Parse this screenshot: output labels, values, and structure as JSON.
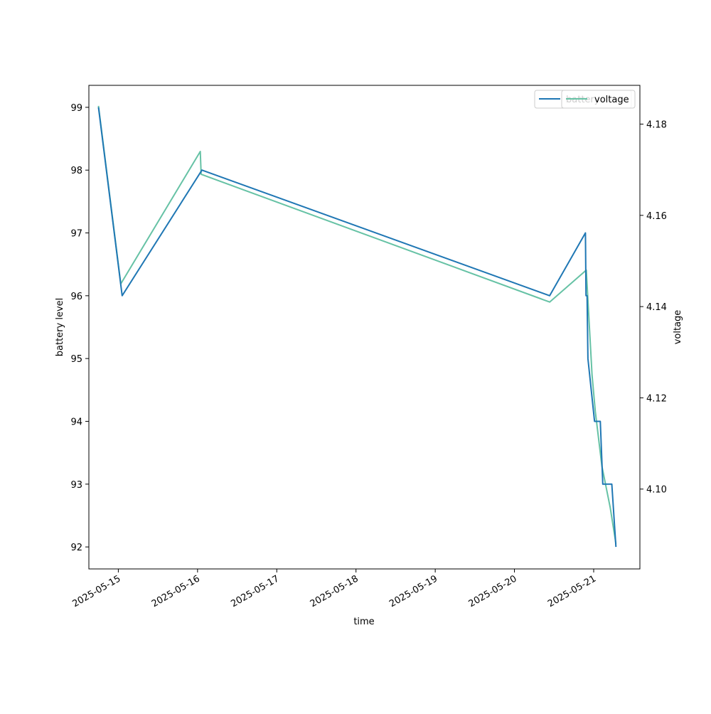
{
  "chart_data": {
    "type": "line",
    "xlabel": "time",
    "ylabel_left": "battery level",
    "ylabel_right": "voltage",
    "x_ticks": [
      "2025-05-15",
      "2025-05-16",
      "2025-05-17",
      "2025-05-18",
      "2025-05-19",
      "2025-05-20",
      "2025-05-21"
    ],
    "y_left_ticks": [
      92,
      93,
      94,
      95,
      96,
      97,
      98,
      99
    ],
    "y_left_lim": [
      91.65,
      99.35
    ],
    "y_right_ticks": [
      4.1,
      4.12,
      4.14,
      4.16,
      4.18
    ],
    "y_right_lim": [
      4.0825,
      4.1885
    ],
    "x_lim": [
      "2025-05-14 15:05",
      "2025-05-21 14:00"
    ],
    "grid": false,
    "series": [
      {
        "name": "battery",
        "axis": "left",
        "color": "#1f77b4",
        "points": [
          [
            "2025-05-14 18:00",
            99
          ],
          [
            "2025-05-15 01:10",
            96
          ],
          [
            "2025-05-16 01:20",
            98
          ],
          [
            "2025-05-20 10:40",
            96
          ],
          [
            "2025-05-20 21:30",
            97
          ],
          [
            "2025-05-20 21:40",
            96
          ],
          [
            "2025-05-20 22:00",
            96
          ],
          [
            "2025-05-20 22:15",
            95
          ],
          [
            "2025-05-21 00:15",
            94
          ],
          [
            "2025-05-21 02:00",
            94
          ],
          [
            "2025-05-21 02:45",
            93
          ],
          [
            "2025-05-21 05:30",
            93
          ],
          [
            "2025-05-21 06:45",
            92
          ]
        ]
      },
      {
        "name": "voltage",
        "axis": "right",
        "color": "#66c2a5",
        "points": [
          [
            "2025-05-14 18:00",
            4.184
          ],
          [
            "2025-05-15 00:45",
            4.145
          ],
          [
            "2025-05-16 00:50",
            4.174
          ],
          [
            "2025-05-16 01:05",
            4.169
          ],
          [
            "2025-05-20 10:40",
            4.141
          ],
          [
            "2025-05-20 21:45",
            4.148
          ],
          [
            "2025-05-20 23:30",
            4.125
          ],
          [
            "2025-05-21 00:30",
            4.117
          ],
          [
            "2025-05-21 02:30",
            4.105
          ],
          [
            "2025-05-21 05:00",
            4.096
          ],
          [
            "2025-05-21 06:45",
            4.088
          ]
        ]
      }
    ],
    "legend_left": {
      "location": "upper-right",
      "entries": [
        {
          "label": "battery",
          "color": "#1f77b4"
        }
      ]
    },
    "legend_right": {
      "location": "upper-right",
      "entries": [
        {
          "label": "voltage",
          "color": "#66c2a5"
        }
      ]
    }
  }
}
